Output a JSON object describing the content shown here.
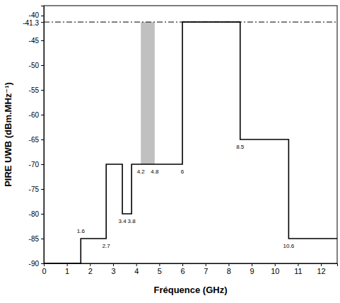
{
  "chart_data": {
    "type": "step",
    "x_label": "Fréquence (GHz)",
    "y_label": "PIRE UWB (dBm.MHz⁻¹)",
    "x": [
      0,
      1.6,
      2.7,
      3.4,
      3.8,
      6,
      8.5,
      10.6,
      12.7
    ],
    "series": [
      {
        "values": [
          -90,
          -85,
          -70,
          -80,
          -70,
          -41.3,
          -65,
          -85,
          -85
        ],
        "color": "#000000",
        "line_style": "solid"
      }
    ],
    "xlim": [
      0,
      12.7
    ],
    "ylim": [
      -90,
      -38
    ],
    "xticks": [
      0,
      1,
      2,
      3,
      4,
      5,
      6,
      7,
      8,
      9,
      10,
      11,
      12
    ],
    "yticks": [
      -90,
      -85,
      -80,
      -75,
      -70,
      -65,
      -60,
      -55,
      -50,
      -45,
      -41.3,
      -40
    ],
    "grid": false,
    "reference_lines": [
      {
        "y": -41.3,
        "color": "#000000",
        "line_style": "dashdot"
      }
    ],
    "shaded_regions": [
      {
        "x": [
          4.2,
          4.8
        ],
        "y": [
          -70,
          -41.3
        ],
        "color": "#c0c0c0"
      }
    ],
    "annotations": [
      {
        "text": "1.6",
        "x": 1.6,
        "y": -83.6
      },
      {
        "text": "2.7",
        "x": 2.7,
        "y": -86.6
      },
      {
        "text": "3.4",
        "x": 3.4,
        "y": -81.6
      },
      {
        "text": "3.8",
        "x": 3.8,
        "y": -81.6
      },
      {
        "text": "4.2",
        "x": 4.2,
        "y": -71.6
      },
      {
        "text": "4.8",
        "x": 4.8,
        "y": -71.6
      },
      {
        "text": "6",
        "x": 6,
        "y": -71.6
      },
      {
        "text": "8.5",
        "x": 8.5,
        "y": -66.6
      },
      {
        "text": "10.6",
        "x": 10.6,
        "y": -86.6
      }
    ]
  }
}
